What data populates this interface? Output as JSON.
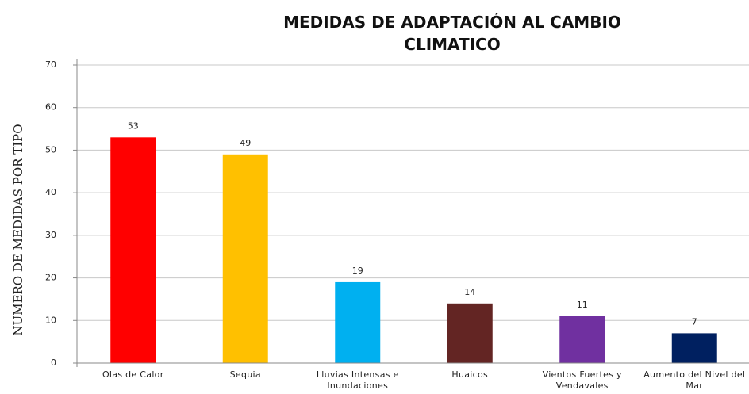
{
  "chart_data": {
    "type": "bar",
    "title": "MEDIDAS DE ADAPTACIÓN AL CAMBIO CLIMATICO",
    "y_label": "NUMERO DE MEDIDAS POR TIPO",
    "categories": [
      "Olas de Calor",
      "Sequia",
      "Lluvias Intensas e Inundaciones",
      "Huaicos",
      "Vientos Fuertes y Vendavales",
      "Aumento del Nivel del Mar"
    ],
    "values": [
      53,
      49,
      19,
      14,
      11,
      7
    ],
    "colors": [
      "#ff0000",
      "#ffc000",
      "#00b0f0",
      "#632523",
      "#7030a0",
      "#002060"
    ],
    "ylim": [
      0,
      70
    ],
    "yticks": [
      0,
      10,
      20,
      30,
      40,
      50,
      60,
      70
    ],
    "grid": true
  }
}
